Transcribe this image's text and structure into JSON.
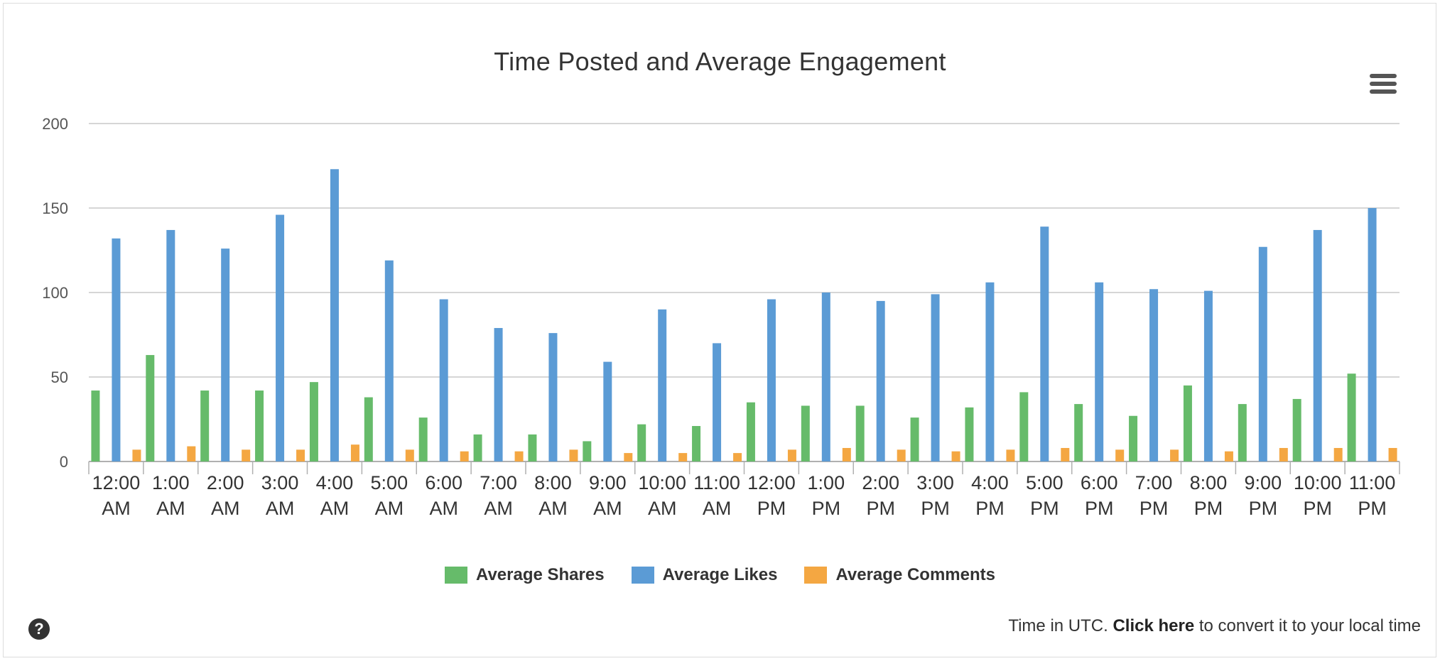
{
  "chart_data": {
    "type": "bar",
    "title": "Time Posted and Average Engagement",
    "xlabel": "",
    "ylabel": "",
    "ylim": [
      0,
      200
    ],
    "yticks": [
      0,
      50,
      100,
      150,
      200
    ],
    "grid": true,
    "legend_position": "bottom",
    "categories": [
      [
        "12:00",
        "AM"
      ],
      [
        "1:00",
        "AM"
      ],
      [
        "2:00",
        "AM"
      ],
      [
        "3:00",
        "AM"
      ],
      [
        "4:00",
        "AM"
      ],
      [
        "5:00",
        "AM"
      ],
      [
        "6:00",
        "AM"
      ],
      [
        "7:00",
        "AM"
      ],
      [
        "8:00",
        "AM"
      ],
      [
        "9:00",
        "AM"
      ],
      [
        "10:00",
        "AM"
      ],
      [
        "11:00",
        "AM"
      ],
      [
        "12:00",
        "PM"
      ],
      [
        "1:00",
        "PM"
      ],
      [
        "2:00",
        "PM"
      ],
      [
        "3:00",
        "PM"
      ],
      [
        "4:00",
        "PM"
      ],
      [
        "5:00",
        "PM"
      ],
      [
        "6:00",
        "PM"
      ],
      [
        "7:00",
        "PM"
      ],
      [
        "8:00",
        "PM"
      ],
      [
        "9:00",
        "PM"
      ],
      [
        "10:00",
        "PM"
      ],
      [
        "11:00",
        "PM"
      ]
    ],
    "series": [
      {
        "name": "Average Shares",
        "color": "#66bb6a",
        "values": [
          42,
          63,
          42,
          42,
          47,
          38,
          26,
          16,
          16,
          12,
          22,
          21,
          35,
          33,
          33,
          26,
          32,
          41,
          34,
          27,
          45,
          34,
          37,
          52
        ]
      },
      {
        "name": "Average Likes",
        "color": "#5b9bd5",
        "values": [
          132,
          137,
          126,
          146,
          173,
          119,
          96,
          79,
          76,
          59,
          90,
          70,
          96,
          100,
          95,
          99,
          106,
          139,
          106,
          102,
          101,
          127,
          137,
          150
        ]
      },
      {
        "name": "Average Comments",
        "color": "#f4a742",
        "values": [
          7,
          9,
          7,
          7,
          10,
          7,
          6,
          6,
          7,
          5,
          5,
          5,
          7,
          8,
          7,
          6,
          7,
          8,
          7,
          7,
          6,
          8,
          8,
          8
        ]
      }
    ]
  },
  "footer": {
    "prefix": "Time in UTC.",
    "link": "Click here",
    "suffix": "to convert it to your local time"
  },
  "icons": {
    "menu": "hamburger-menu-icon",
    "help": "question-circle-icon"
  }
}
